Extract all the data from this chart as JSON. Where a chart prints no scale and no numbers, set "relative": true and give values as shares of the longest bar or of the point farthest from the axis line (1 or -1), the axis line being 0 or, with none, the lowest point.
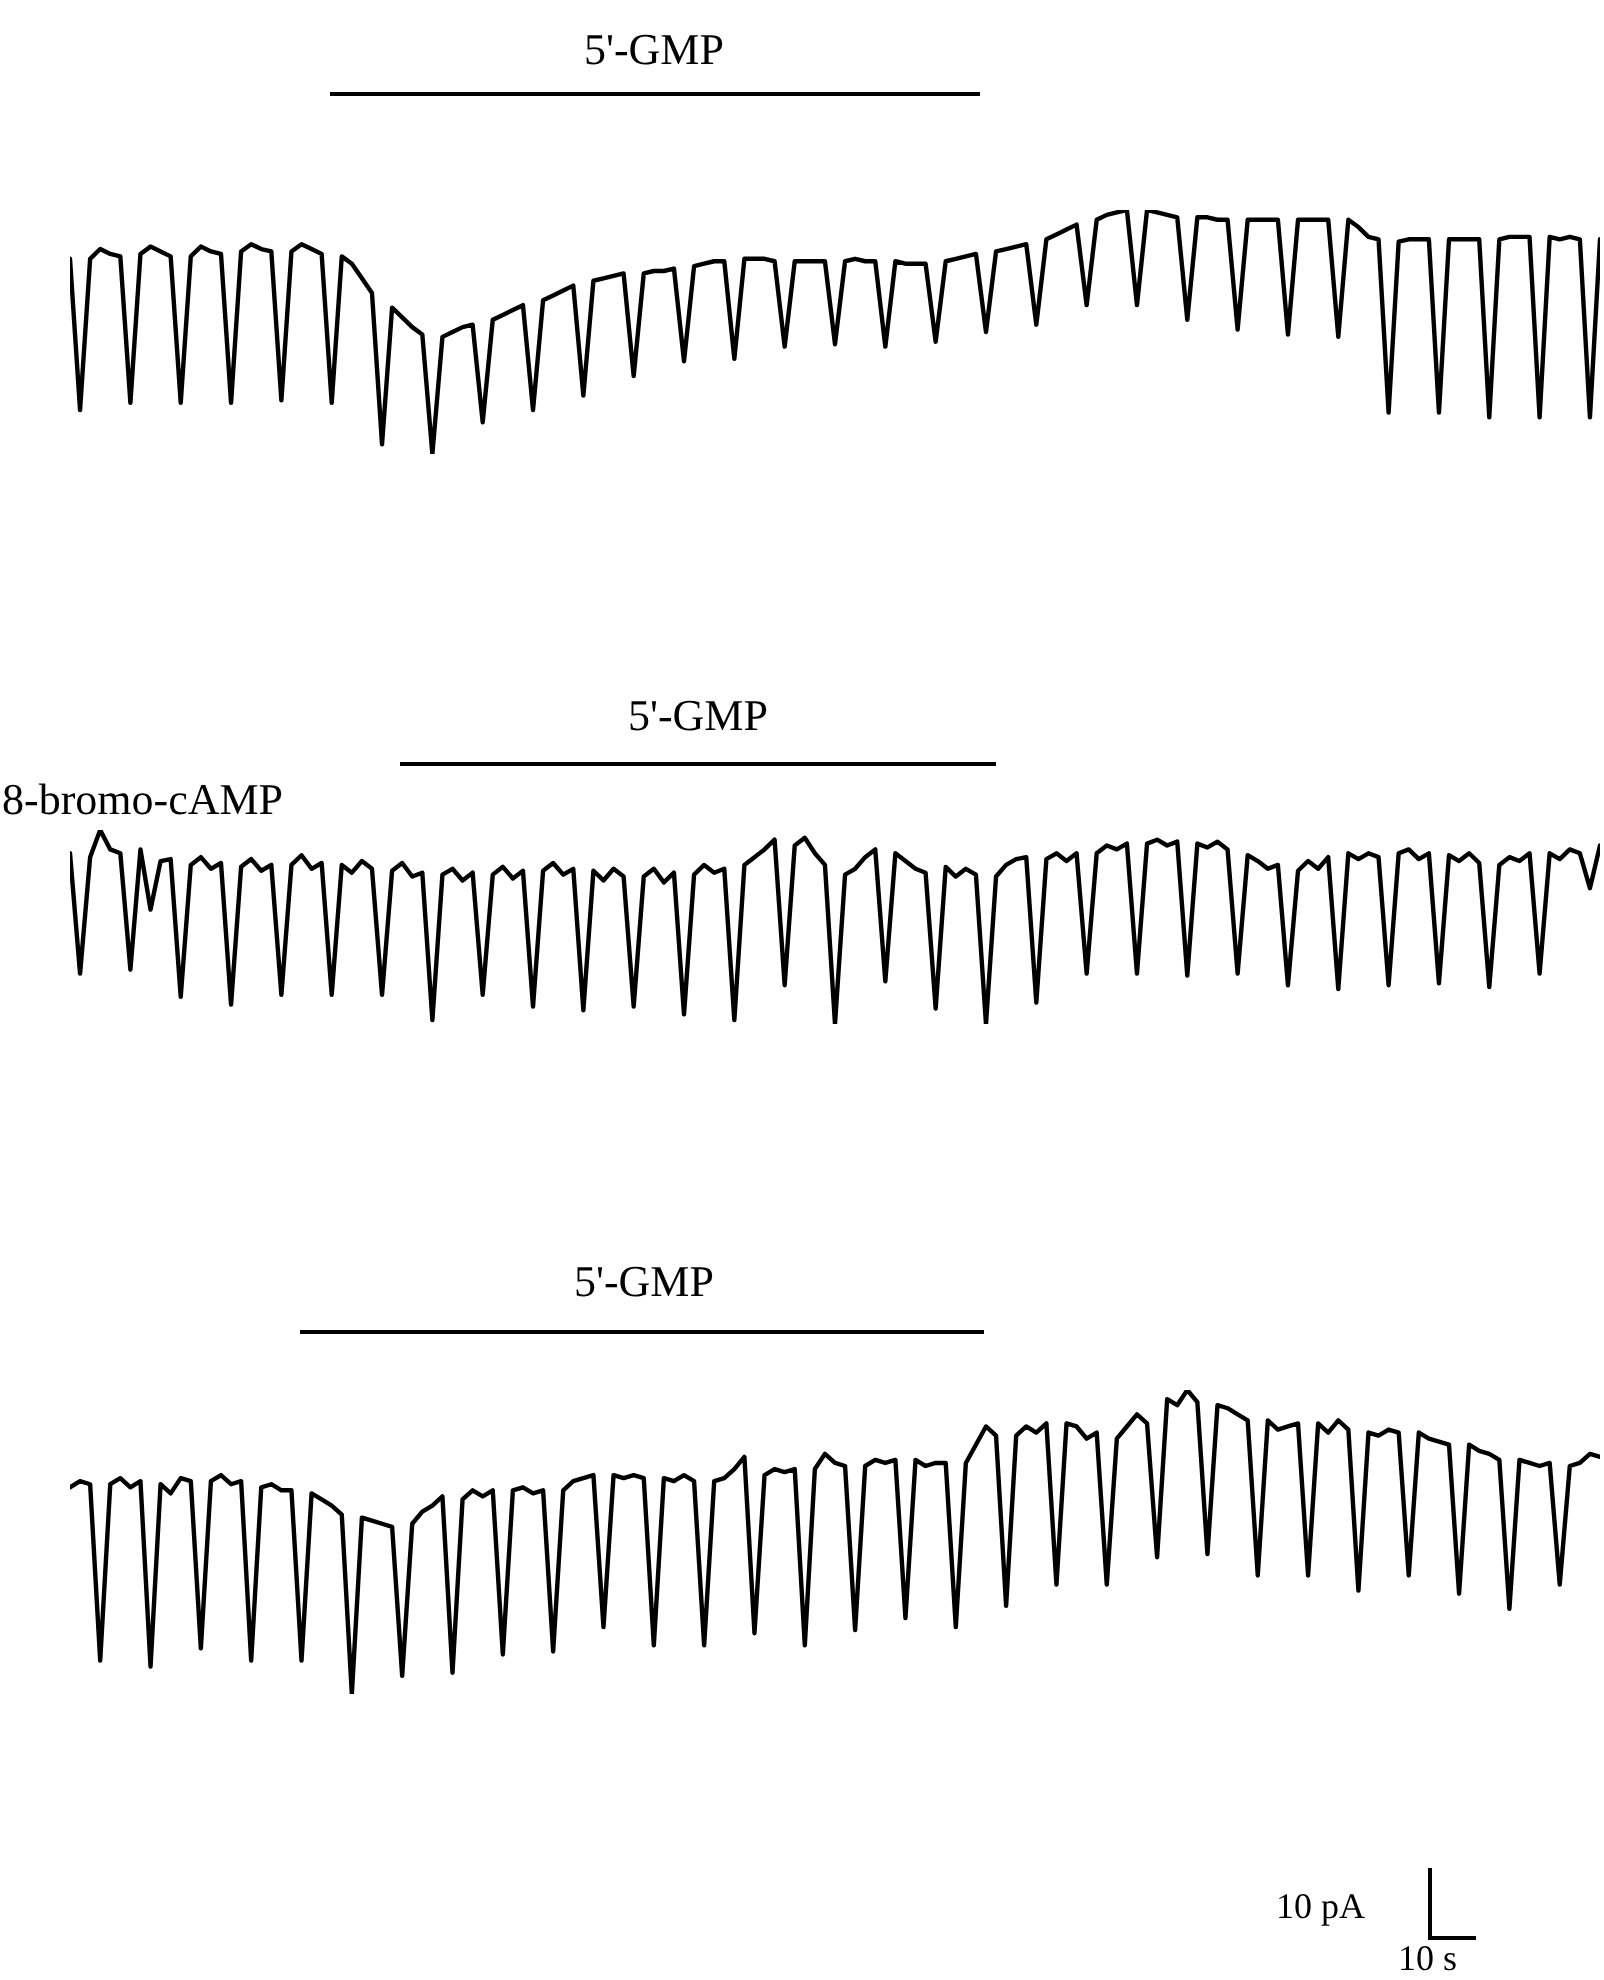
{
  "chart_data": [
    {
      "type": "line",
      "relative": true,
      "annotations": [
        "5'-GMP"
      ],
      "categories": [
        null,
        null,
        null,
        null,
        null,
        null,
        null,
        null,
        null,
        null,
        null,
        null,
        null,
        null,
        null,
        null,
        null,
        null,
        null,
        null,
        null,
        null,
        null,
        null,
        null,
        null,
        null,
        null,
        null,
        null,
        null,
        null,
        null,
        null,
        null,
        null,
        null,
        null,
        null,
        null,
        null,
        null,
        null,
        null,
        null,
        null,
        null,
        null,
        null,
        null,
        null,
        null,
        null,
        null,
        null,
        null,
        null,
        null,
        null,
        null,
        null,
        null,
        null,
        null,
        null,
        null,
        null,
        null,
        null,
        null,
        null,
        null,
        null,
        null,
        null,
        null,
        null,
        null,
        null,
        null,
        null,
        null,
        null,
        null,
        null,
        null,
        null,
        null,
        null,
        null,
        null,
        null,
        null,
        null,
        null,
        null,
        null,
        null,
        null,
        null,
        null,
        null,
        null,
        null,
        null,
        null,
        null,
        null,
        null,
        null,
        null,
        null,
        null,
        null,
        null,
        null,
        null,
        null,
        null,
        null,
        null,
        null,
        null,
        null,
        null,
        null,
        null,
        null,
        null,
        null,
        null,
        null,
        null,
        null,
        null,
        null,
        null,
        null,
        null,
        null,
        null,
        null,
        null,
        null,
        null,
        null,
        null,
        null,
        null,
        null,
        null,
        null,
        null
      ],
      "series": [
        {
          "color": "#000000",
          "values": [
            0.8,
            0.18,
            0.8,
            0.84,
            0.82,
            0.81,
            0.21,
            0.82,
            0.85,
            0.83,
            0.81,
            0.21,
            0.81,
            0.85,
            0.83,
            0.82,
            0.21,
            0.83,
            0.86,
            0.84,
            0.83,
            0.22,
            0.83,
            0.86,
            0.84,
            0.82,
            0.21,
            0.81,
            0.78,
            0.72,
            0.66,
            0.04,
            0.6,
            0.56,
            0.52,
            0.49,
            0,
            0.48,
            0.5,
            0.52,
            0.53,
            0.13,
            0.55,
            0.57,
            0.59,
            0.61,
            0.18,
            0.63,
            0.65,
            0.67,
            0.69,
            0.24,
            0.71,
            0.72,
            0.73,
            0.74,
            0.32,
            0.74,
            0.75,
            0.75,
            0.76,
            0.38,
            0.77,
            0.78,
            0.79,
            0.79,
            0.39,
            0.8,
            0.8,
            0.8,
            0.79,
            0.44,
            0.79,
            0.79,
            0.79,
            0.79,
            0.45,
            0.79,
            0.8,
            0.79,
            0.79,
            0.44,
            0.79,
            0.78,
            0.78,
            0.78,
            0.46,
            0.79,
            0.8,
            0.81,
            0.82,
            0.5,
            0.83,
            0.84,
            0.85,
            0.86,
            0.53,
            0.88,
            0.9,
            0.92,
            0.94,
            0.61,
            0.96,
            0.98,
            0.99,
            1.0,
            0.61,
            1.0,
            0.99,
            0.98,
            0.97,
            0.55,
            0.97,
            0.97,
            0.96,
            0.96,
            0.51,
            0.96,
            0.96,
            0.96,
            0.96,
            0.49,
            0.96,
            0.96,
            0.96,
            0.96,
            0.48,
            0.96,
            0.93,
            0.89,
            0.88,
            0.17,
            0.87,
            0.88,
            0.88,
            0.88,
            0.17,
            0.88,
            0.88,
            0.88,
            0.88,
            0.15,
            0.88,
            0.89,
            0.89,
            0.89,
            0.15,
            0.89,
            0.88,
            0.89,
            0.88,
            0.15,
            0.88
          ]
        }
      ]
    },
    {
      "type": "line",
      "relative": true,
      "annotations": [
        "5'-GMP",
        "8-bromo-cAMP"
      ],
      "categories": [
        null,
        null,
        null,
        null,
        null,
        null,
        null,
        null,
        null,
        null,
        null,
        null,
        null,
        null,
        null,
        null,
        null,
        null,
        null,
        null,
        null,
        null,
        null,
        null,
        null,
        null,
        null,
        null,
        null,
        null,
        null,
        null,
        null,
        null,
        null,
        null,
        null,
        null,
        null,
        null,
        null,
        null,
        null,
        null,
        null,
        null,
        null,
        null,
        null,
        null,
        null,
        null,
        null,
        null,
        null,
        null,
        null,
        null,
        null,
        null,
        null,
        null,
        null,
        null,
        null,
        null,
        null,
        null,
        null,
        null,
        null,
        null,
        null,
        null,
        null,
        null,
        null,
        null,
        null,
        null,
        null,
        null,
        null,
        null,
        null,
        null,
        null,
        null,
        null,
        null,
        null,
        null,
        null,
        null,
        null,
        null,
        null,
        null,
        null,
        null,
        null,
        null,
        null,
        null,
        null,
        null,
        null,
        null,
        null,
        null,
        null,
        null,
        null,
        null,
        null,
        null,
        null,
        null,
        null,
        null,
        null,
        null,
        null,
        null,
        null,
        null,
        null,
        null,
        null,
        null,
        null,
        null,
        null,
        null,
        null,
        null,
        null,
        null,
        null,
        null,
        null,
        null,
        null,
        null,
        null,
        null,
        null,
        null,
        null,
        null,
        null,
        null,
        null
      ],
      "series": [
        {
          "color": "#000000",
          "values": [
            0.88,
            0.26,
            0.86,
            1.0,
            0.9,
            0.88,
            0.28,
            0.9,
            0.59,
            0.84,
            0.85,
            0.14,
            0.82,
            0.86,
            0.8,
            0.83,
            0.1,
            0.81,
            0.85,
            0.79,
            0.82,
            0.15,
            0.82,
            0.87,
            0.8,
            0.83,
            0.15,
            0.82,
            0.78,
            0.84,
            0.8,
            0.15,
            0.79,
            0.83,
            0.76,
            0.78,
            0.02,
            0.77,
            0.8,
            0.74,
            0.78,
            0.15,
            0.77,
            0.81,
            0.75,
            0.79,
            0.09,
            0.79,
            0.83,
            0.77,
            0.8,
            0.07,
            0.79,
            0.74,
            0.8,
            0.76,
            0.09,
            0.76,
            0.8,
            0.73,
            0.78,
            0.05,
            0.77,
            0.82,
            0.78,
            0.8,
            0.02,
            0.82,
            0.86,
            0.9,
            0.95,
            0.2,
            0.92,
            0.96,
            0.88,
            0.82,
            0,
            0.77,
            0.8,
            0.86,
            0.9,
            0.22,
            0.88,
            0.84,
            0.8,
            0.78,
            0.08,
            0.81,
            0.76,
            0.8,
            0.77,
            0,
            0.76,
            0.82,
            0.85,
            0.86,
            0.11,
            0.85,
            0.88,
            0.84,
            0.88,
            0.26,
            0.88,
            0.92,
            0.9,
            0.93,
            0.26,
            0.93,
            0.95,
            0.92,
            0.94,
            0.25,
            0.93,
            0.91,
            0.94,
            0.9,
            0.26,
            0.87,
            0.84,
            0.8,
            0.82,
            0.2,
            0.79,
            0.84,
            0.8,
            0.86,
            0.18,
            0.88,
            0.85,
            0.88,
            0.86,
            0.2,
            0.88,
            0.9,
            0.85,
            0.88,
            0.21,
            0.87,
            0.84,
            0.88,
            0.83,
            0.19,
            0.82,
            0.86,
            0.84,
            0.88,
            0.26,
            0.88,
            0.85,
            0.9,
            0.88,
            0.7,
            0.92
          ]
        }
      ]
    },
    {
      "type": "line",
      "relative": true,
      "annotations": [
        "5'-GMP",
        "10 pA",
        "10 s"
      ],
      "categories": [
        null,
        null,
        null,
        null,
        null,
        null,
        null,
        null,
        null,
        null,
        null,
        null,
        null,
        null,
        null,
        null,
        null,
        null,
        null,
        null,
        null,
        null,
        null,
        null,
        null,
        null,
        null,
        null,
        null,
        null,
        null,
        null,
        null,
        null,
        null,
        null,
        null,
        null,
        null,
        null,
        null,
        null,
        null,
        null,
        null,
        null,
        null,
        null,
        null,
        null,
        null,
        null,
        null,
        null,
        null,
        null,
        null,
        null,
        null,
        null,
        null,
        null,
        null,
        null,
        null,
        null,
        null,
        null,
        null,
        null,
        null,
        null,
        null,
        null,
        null,
        null,
        null,
        null,
        null,
        null,
        null,
        null,
        null,
        null,
        null,
        null,
        null,
        null,
        null,
        null,
        null,
        null,
        null,
        null,
        null,
        null,
        null,
        null,
        null,
        null,
        null,
        null,
        null,
        null,
        null,
        null,
        null,
        null,
        null,
        null,
        null,
        null,
        null,
        null,
        null,
        null,
        null,
        null,
        null,
        null,
        null,
        null,
        null,
        null,
        null,
        null,
        null,
        null,
        null,
        null,
        null,
        null,
        null,
        null,
        null,
        null,
        null,
        null,
        null,
        null,
        null,
        null,
        null,
        null,
        null,
        null,
        null,
        null,
        null,
        null,
        null,
        null,
        null
      ],
      "series": [
        {
          "color": "#000000",
          "values": [
            0.68,
            0.7,
            0.69,
            0.11,
            0.69,
            0.71,
            0.68,
            0.7,
            0.09,
            0.69,
            0.66,
            0.71,
            0.7,
            0.15,
            0.7,
            0.72,
            0.69,
            0.7,
            0.11,
            0.68,
            0.69,
            0.67,
            0.67,
            0.11,
            0.66,
            0.64,
            0.62,
            0.59,
            0,
            0.58,
            0.57,
            0.56,
            0.55,
            0.06,
            0.56,
            0.6,
            0.62,
            0.65,
            0.07,
            0.64,
            0.67,
            0.65,
            0.67,
            0.13,
            0.67,
            0.68,
            0.66,
            0.67,
            0.14,
            0.67,
            0.7,
            0.71,
            0.72,
            0.22,
            0.72,
            0.71,
            0.72,
            0.71,
            0.16,
            0.71,
            0.7,
            0.72,
            0.7,
            0.16,
            0.7,
            0.71,
            0.74,
            0.78,
            0.2,
            0.72,
            0.74,
            0.73,
            0.74,
            0.16,
            0.74,
            0.79,
            0.76,
            0.75,
            0.21,
            0.75,
            0.77,
            0.76,
            0.77,
            0.25,
            0.77,
            0.75,
            0.76,
            0.76,
            0.22,
            0.76,
            0.82,
            0.88,
            0.85,
            0.29,
            0.85,
            0.88,
            0.86,
            0.89,
            0.36,
            0.89,
            0.88,
            0.84,
            0.86,
            0.36,
            0.84,
            0.88,
            0.92,
            0.89,
            0.45,
            0.97,
            0.95,
            1.0,
            0.96,
            0.46,
            0.95,
            0.94,
            0.92,
            0.9,
            0.39,
            0.9,
            0.87,
            0.88,
            0.89,
            0.39,
            0.89,
            0.86,
            0.9,
            0.87,
            0.34,
            0.86,
            0.85,
            0.87,
            0.86,
            0.39,
            0.86,
            0.84,
            0.83,
            0.82,
            0.33,
            0.82,
            0.8,
            0.79,
            0.77,
            0.28,
            0.77,
            0.76,
            0.75,
            0.76,
            0.36,
            0.75,
            0.76,
            0.79,
            0.78
          ]
        }
      ]
    }
  ]
}
